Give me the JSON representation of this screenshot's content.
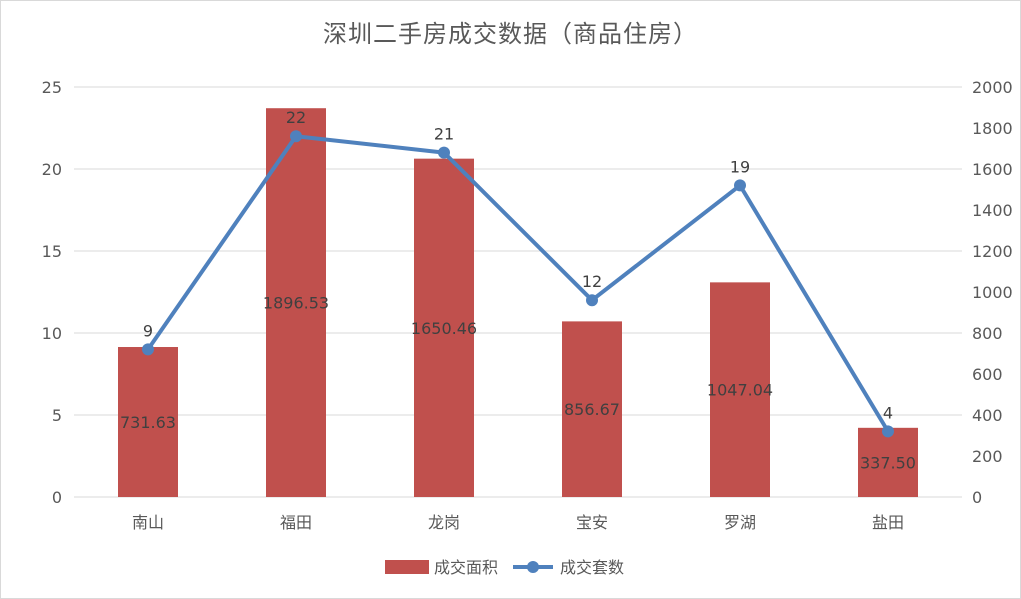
{
  "chart_data": {
    "type": "bar",
    "title": "深圳二手房成交数据（商品住房）",
    "categories": [
      "南山",
      "福田",
      "龙岗",
      "宝安",
      "罗湖",
      "盐田"
    ],
    "series": [
      {
        "name": "成交面积",
        "type": "bar",
        "axis": "right",
        "color": "#c0504d",
        "values": [
          731.63,
          1896.53,
          1650.46,
          856.67,
          1047.04,
          337.5
        ],
        "labels": [
          "731.63",
          "1896.53",
          "1650.46",
          "856.67",
          "1047.04",
          "337.50"
        ]
      },
      {
        "name": "成交套数",
        "type": "line",
        "axis": "left",
        "color": "#4f81bd",
        "values": [
          9,
          22,
          21,
          12,
          19,
          4
        ],
        "labels": [
          "9",
          "22",
          "21",
          "12",
          "19",
          "4"
        ]
      }
    ],
    "y_left": {
      "ylim": [
        0,
        25
      ],
      "ticks": [
        "0",
        "5",
        "10",
        "15",
        "20",
        "25"
      ]
    },
    "y_right": {
      "ylim": [
        0,
        2000
      ],
      "ticks": [
        "0",
        "200",
        "400",
        "600",
        "800",
        "1000",
        "1200",
        "1400",
        "1600",
        "1800",
        "2000"
      ]
    },
    "grid": true,
    "legend": "bottom"
  }
}
